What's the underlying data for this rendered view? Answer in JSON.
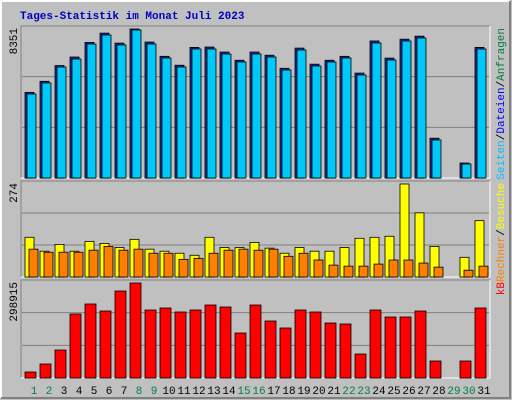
{
  "separator": "/",
  "chart_data": [
    {
      "type": "bar",
      "title": "Tages-Statistik im Monat Juli 2023",
      "ylim": [
        0,
        8351
      ],
      "yticks": [
        8351
      ],
      "legend": [
        {
          "text": "Seiten",
          "color": "#00c0ff"
        },
        {
          "text": "Dateien",
          "color": "#0000ff"
        },
        {
          "text": "Anfragen",
          "color": "#008040"
        }
      ],
      "series": [
        {
          "color": "#1830a0",
          "values": [
            4800,
            5420,
            6300,
            6780,
            7600,
            8120,
            7560,
            8351,
            7620,
            6820,
            6320,
            7320,
            7340,
            7060,
            6600,
            7060,
            6880,
            6150,
            7280,
            6380,
            6600,
            6820,
            5880,
            7680,
            6720,
            7780,
            7950,
            2230,
            0,
            840,
            7320
          ]
        },
        {
          "color": "#00c8f8",
          "values": [
            4708,
            5325,
            6221,
            6670,
            7510,
            8015,
            7455,
            8295,
            7510,
            6726,
            6221,
            7230,
            7230,
            6950,
            6502,
            6950,
            6782,
            6053,
            7174,
            6277,
            6502,
            6726,
            5773,
            7566,
            6614,
            7678,
            7846,
            2130,
            0,
            785,
            7230
          ]
        }
      ]
    },
    {
      "type": "bar",
      "ylim": [
        0,
        274
      ],
      "yticks": [
        274
      ],
      "legend": [
        {
          "text": "Rechner",
          "color": "#ff8000"
        },
        {
          "text": "Besuche",
          "color": "#ffff00"
        }
      ],
      "series": [
        {
          "color": "#ffff00",
          "values": [
            117,
            76,
            96,
            76,
            105,
            99,
            87,
            111,
            82,
            76,
            70,
            64,
            117,
            87,
            87,
            102,
            85,
            70,
            87,
            76,
            76,
            87,
            114,
            117,
            120,
            274,
            189,
            90,
            0,
            58,
            166
          ]
        },
        {
          "color": "#ff8000",
          "values": [
            82,
            73,
            73,
            73,
            79,
            90,
            79,
            82,
            70,
            70,
            52,
            55,
            70,
            79,
            82,
            79,
            82,
            61,
            70,
            50,
            35,
            32,
            32,
            38,
            50,
            50,
            41,
            29,
            0,
            20,
            32
          ]
        }
      ]
    },
    {
      "type": "bar",
      "ylim": [
        0,
        298915
      ],
      "yticks": [
        298915
      ],
      "legend": [
        {
          "text": "kB",
          "color": "#ff0000"
        }
      ],
      "series": [
        {
          "color": "#ff0000",
          "values": [
            18876,
            44044,
            88088,
            201344,
            232804,
            210782,
            273702,
            298915,
            213928,
            220220,
            207636,
            213928,
            229658,
            223366,
            141570,
            229658,
            179322,
            157300,
            213928,
            207636,
            173030,
            169884,
            75504,
            213928,
            191906,
            191906,
            210782,
            53482,
            0,
            53482,
            220220
          ]
        }
      ],
      "categories": [
        "1",
        "2",
        "3",
        "4",
        "5",
        "6",
        "7",
        "8",
        "9",
        "10",
        "11",
        "12",
        "13",
        "14",
        "15",
        "16",
        "17",
        "18",
        "19",
        "20",
        "21",
        "22",
        "23",
        "24",
        "25",
        "26",
        "27",
        "28",
        "29",
        "30",
        "31"
      ],
      "category_colors": [
        "#008040",
        "#008040",
        "#000000",
        "#000000",
        "#000000",
        "#000000",
        "#000000",
        "#008040",
        "#008040",
        "#000000",
        "#000000",
        "#000000",
        "#000000",
        "#000000",
        "#008040",
        "#008040",
        "#000000",
        "#000000",
        "#000000",
        "#000000",
        "#000000",
        "#008040",
        "#008040",
        "#000000",
        "#000000",
        "#000000",
        "#000000",
        "#000000",
        "#008040",
        "#008040",
        "#000000"
      ]
    }
  ]
}
